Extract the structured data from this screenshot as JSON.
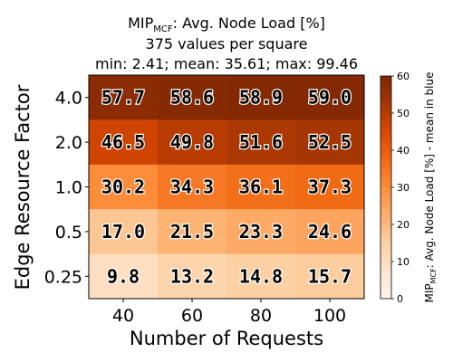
{
  "chart_data": {
    "type": "heatmap",
    "title_main": "MIP",
    "title_sub": "MCF",
    "title_rest": ": Avg. Node Load [%]",
    "subtitle_1": "375 values per square",
    "subtitle_2": "min: 2.41; mean: 35.61; max: 99.46",
    "xlabel": "Number of Requests",
    "ylabel": "Edge Resource Factor",
    "x_categories": [
      "40",
      "60",
      "80",
      "100"
    ],
    "y_categories": [
      "4.0",
      "2.0",
      "1.0",
      "0.5",
      "0.25"
    ],
    "values": [
      [
        57.7,
        58.6,
        58.9,
        59.0
      ],
      [
        46.5,
        49.8,
        51.6,
        52.5
      ],
      [
        30.2,
        34.3,
        36.1,
        37.3
      ],
      [
        17.0,
        21.5,
        23.3,
        24.6
      ],
      [
        9.8,
        13.2,
        14.8,
        15.7
      ]
    ],
    "colorbar": {
      "min": 0,
      "max": 60,
      "ticks": [
        "0",
        "10",
        "20",
        "30",
        "40",
        "50",
        "60"
      ],
      "label_main": "MIP",
      "label_sub": "MCF",
      "label_rest": ": Avg. Node Load [%] - mean in blue",
      "colormap": "Oranges"
    }
  }
}
